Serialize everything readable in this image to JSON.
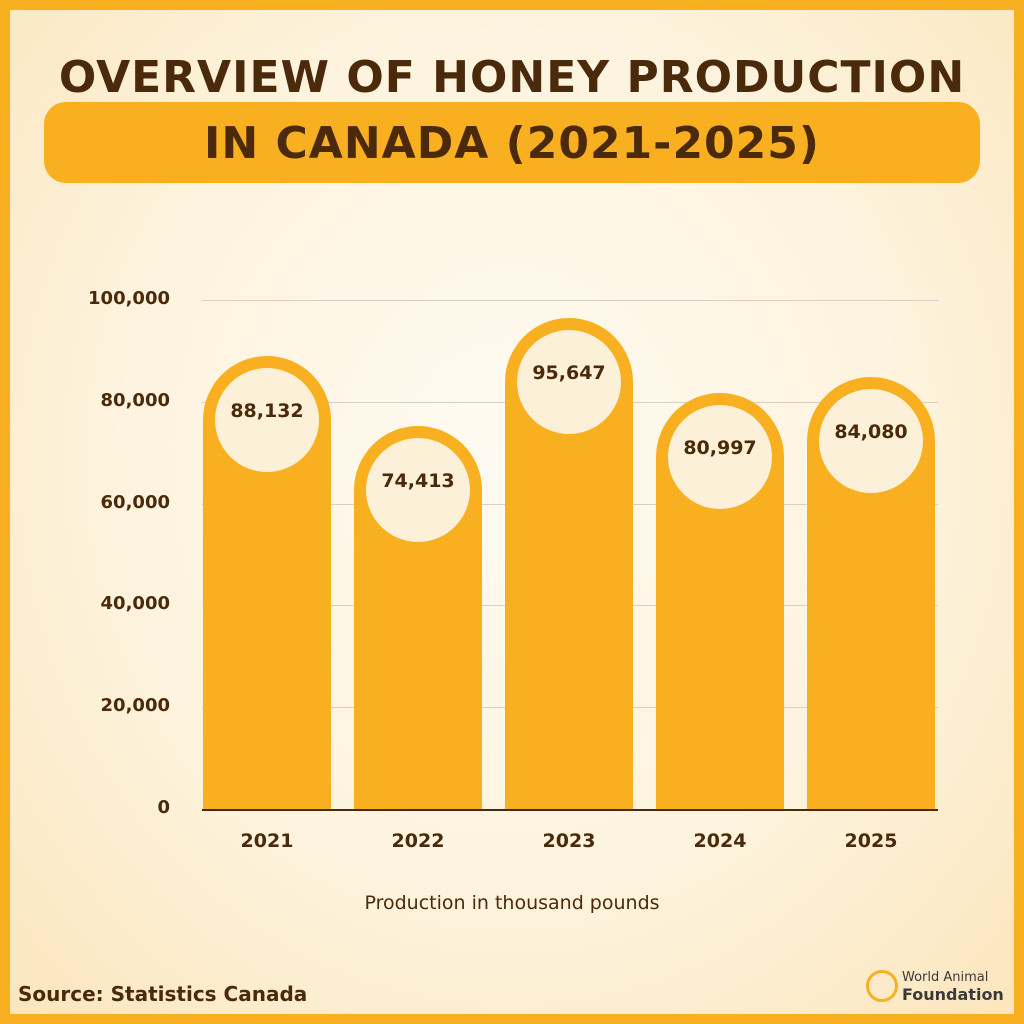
{
  "title": {
    "line1": "OVERVIEW OF HONEY PRODUCTION",
    "line2": "IN CANADA (2021-2025)"
  },
  "chart_data": {
    "type": "bar",
    "title": "Overview of Honey Production in Canada (2021-2025)",
    "categories": [
      "2021",
      "2022",
      "2023",
      "2024",
      "2025"
    ],
    "values": [
      88132,
      74413,
      95647,
      80997,
      84080
    ],
    "value_labels": [
      "88,132",
      "74,413",
      "95,647",
      "80,997",
      "84,080"
    ],
    "xlabel": "Production in thousand pounds",
    "ylabel": "",
    "ylim": [
      0,
      100000
    ],
    "yticks": [
      "0",
      "20,000",
      "40,000",
      "60,000",
      "80,000",
      "100,000"
    ],
    "grid": true,
    "colors": {
      "bar": "#f8b020",
      "bubble": "#fdf0d8",
      "text": "#4a2a0a"
    }
  },
  "footer": {
    "source": "Source: Statistics Canada",
    "logo_line1": "World Animal",
    "logo_line2": "Foundation",
    "logo_icon": "animal-foundation-logo-icon"
  }
}
